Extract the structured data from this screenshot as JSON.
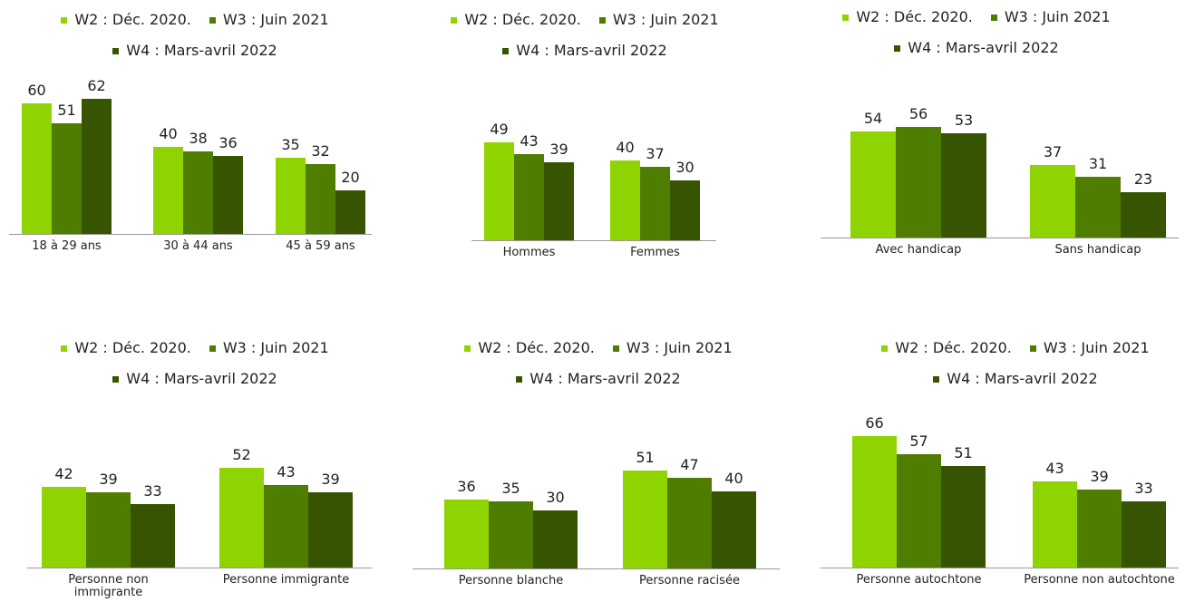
{
  "chart_data": [
    {
      "type": "bar",
      "categories": [
        "18 à 29 ans",
        "30 à 44 ans",
        "45 à 59 ans"
      ],
      "series": [
        {
          "name": "W2 : Déc. 2020.",
          "color": "#8fd400",
          "values": [
            60,
            40,
            35
          ]
        },
        {
          "name": "W3 : Juin 2021",
          "color": "#4f7d00",
          "values": [
            51,
            38,
            32
          ]
        },
        {
          "name": "W4 : Mars-avril 2022",
          "color": "#375500",
          "values": [
            62,
            36,
            20
          ]
        }
      ]
    },
    {
      "type": "bar",
      "categories": [
        "Hommes",
        "Femmes"
      ],
      "series": [
        {
          "name": "W2 : Déc. 2020.",
          "color": "#8fd400",
          "values": [
            49,
            40
          ]
        },
        {
          "name": "W3 : Juin 2021",
          "color": "#4f7d00",
          "values": [
            43,
            37
          ]
        },
        {
          "name": "W4 : Mars-avril 2022",
          "color": "#375500",
          "values": [
            39,
            30
          ]
        }
      ]
    },
    {
      "type": "bar",
      "categories": [
        "Avec handicap",
        "Sans handicap"
      ],
      "series": [
        {
          "name": "W2 : Déc. 2020.",
          "color": "#8fd400",
          "values": [
            54,
            37
          ]
        },
        {
          "name": "W3 : Juin 2021",
          "color": "#4f7d00",
          "values": [
            56,
            31
          ]
        },
        {
          "name": "W4 : Mars-avril 2022",
          "color": "#375500",
          "values": [
            53,
            23
          ]
        }
      ]
    },
    {
      "type": "bar",
      "categories": [
        "Personne non immigrante",
        "Personne immigrante"
      ],
      "series": [
        {
          "name": "W2 : Déc. 2020.",
          "color": "#8fd400",
          "values": [
            42,
            52
          ]
        },
        {
          "name": "W3 : Juin 2021",
          "color": "#4f7d00",
          "values": [
            39,
            43
          ]
        },
        {
          "name": "W4 : Mars-avril 2022",
          "color": "#375500",
          "values": [
            33,
            39
          ]
        }
      ]
    },
    {
      "type": "bar",
      "categories": [
        "Personne blanche",
        "Personne racisée"
      ],
      "series": [
        {
          "name": "W2 : Déc. 2020.",
          "color": "#8fd400",
          "values": [
            36,
            51
          ]
        },
        {
          "name": "W3 : Juin 2021",
          "color": "#4f7d00",
          "values": [
            35,
            47
          ]
        },
        {
          "name": "W4 : Mars-avril 2022",
          "color": "#375500",
          "values": [
            30,
            40
          ]
        }
      ]
    },
    {
      "type": "bar",
      "categories": [
        "Personne autochtone",
        "Personne non autochtone"
      ],
      "series": [
        {
          "name": "W2 : Déc. 2020.",
          "color": "#8fd400",
          "values": [
            66,
            43
          ]
        },
        {
          "name": "W3 : Juin 2021",
          "color": "#4f7d00",
          "values": [
            57,
            39
          ]
        },
        {
          "name": "W4 : Mars-avril 2022",
          "color": "#375500",
          "values": [
            51,
            33
          ]
        }
      ]
    }
  ]
}
